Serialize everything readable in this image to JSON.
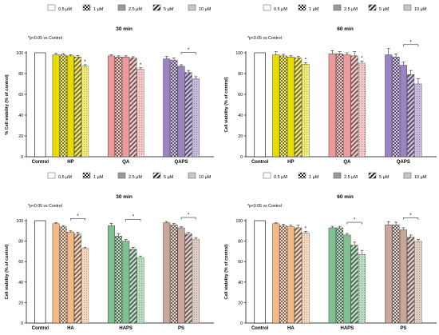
{
  "chart_data": [
    {
      "type": "bar",
      "title": "30 min",
      "ylabel": "% Cell viability (% of control)",
      "ylim": [
        0,
        100
      ],
      "yticks": [
        0,
        20,
        40,
        60,
        80,
        100
      ],
      "annotation": "*p<0.05 vs Control",
      "control": {
        "label": "Control",
        "value": 100
      },
      "legend": [
        "0.5 µM",
        "1 µM",
        "2.5 µM",
        "5 µM",
        "10 µM"
      ],
      "groups": [
        {
          "name": "HP",
          "color": "#e7dc00",
          "values": [
            98,
            98,
            97,
            96,
            87
          ],
          "errors": [
            1.5,
            1.2,
            1.0,
            1.2,
            1.5
          ],
          "sig": [
            false,
            false,
            false,
            false,
            true
          ],
          "bracket": false
        },
        {
          "name": "QA",
          "color": "#ef9a9a",
          "values": [
            97,
            96,
            96,
            95,
            84
          ],
          "errors": [
            1.2,
            1.0,
            1.0,
            1.2,
            1.5
          ],
          "sig": [
            false,
            false,
            false,
            false,
            true
          ],
          "bracket": false
        },
        {
          "name": "QAPS",
          "color": "#9b83c4",
          "values": [
            94,
            93,
            87,
            81,
            75
          ],
          "errors": [
            2.5,
            2.0,
            1.5,
            2.0,
            2.0
          ],
          "sig": [
            false,
            false,
            false,
            false,
            false
          ],
          "bracket": true
        }
      ]
    },
    {
      "type": "bar",
      "title": "60 min",
      "ylabel": "Cell viability (% of control)",
      "ylim": [
        0,
        100
      ],
      "yticks": [
        0,
        20,
        40,
        60,
        80,
        100
      ],
      "annotation": "*p<0.05 vs Control",
      "control": {
        "label": "Control",
        "value": 100
      },
      "legend": [
        "0.5 µM",
        "1 µM",
        "2.5 µM",
        "5 µM",
        "10 µM"
      ],
      "groups": [
        {
          "name": "HP",
          "color": "#e7dc00",
          "values": [
            98,
            97,
            96,
            95,
            89
          ],
          "errors": [
            3,
            1.5,
            1.2,
            1.5,
            1.5
          ],
          "sig": [
            false,
            false,
            false,
            false,
            true
          ],
          "bracket": false
        },
        {
          "name": "QA",
          "color": "#ef9a9a",
          "values": [
            99,
            99,
            98,
            97,
            90
          ],
          "errors": [
            3,
            2,
            2,
            4,
            2
          ],
          "sig": [
            false,
            false,
            false,
            false,
            true
          ],
          "bracket": false
        },
        {
          "name": "QAPS",
          "color": "#9b83c4",
          "values": [
            98,
            96,
            88,
            79,
            70
          ],
          "errors": [
            6,
            3,
            3,
            4,
            5
          ],
          "sig": [
            false,
            false,
            false,
            false,
            false
          ],
          "bracket": true
        }
      ]
    },
    {
      "type": "bar",
      "title": "30 min",
      "ylabel": "Cell viability (% of control)",
      "ylim": [
        0,
        100
      ],
      "yticks": [
        0,
        20,
        40,
        60,
        80,
        100
      ],
      "annotation": "*p<0.05 vs Control",
      "control": {
        "label": "Control",
        "value": 100
      },
      "legend": [
        "0.5 µM",
        "1 µM",
        "2.5 µM",
        "5 µM",
        "10 µM"
      ],
      "groups": [
        {
          "name": "HA",
          "color": "#f5b887",
          "values": [
            97,
            94,
            89,
            87,
            73
          ],
          "errors": [
            1.2,
            1.2,
            1.0,
            1.5,
            1.0
          ],
          "sig": [
            false,
            false,
            false,
            false,
            false
          ],
          "bracket": true
        },
        {
          "name": "HAPS",
          "color": "#7fc28f",
          "values": [
            95,
            85,
            80,
            72,
            64
          ],
          "errors": [
            2.5,
            2,
            1.5,
            2,
            1.5
          ],
          "sig": [
            false,
            false,
            false,
            false,
            false
          ],
          "bracket": true
        },
        {
          "name": "PS",
          "color": "#c9a799",
          "values": [
            98,
            96,
            93,
            87,
            82
          ],
          "errors": [
            1.2,
            1.2,
            1.0,
            1.5,
            1.5
          ],
          "sig": [
            false,
            false,
            false,
            false,
            false
          ],
          "bracket": true
        }
      ]
    },
    {
      "type": "bar",
      "title": "60 min",
      "ylabel": "Cell viability (% of control)",
      "ylim": [
        0,
        100
      ],
      "yticks": [
        0,
        20,
        40,
        60,
        80,
        100
      ],
      "annotation": "*p<0.05 vs Control",
      "control": {
        "label": "Control",
        "value": 100
      },
      "legend": [
        "0.5 µM",
        "1 µM",
        "2.5 µM",
        "5 µM",
        "10 µM"
      ],
      "groups": [
        {
          "name": "HA",
          "color": "#f5b887",
          "values": [
            97,
            95,
            94,
            93,
            88
          ],
          "errors": [
            1.0,
            1.5,
            1.5,
            2.5,
            1.5
          ],
          "sig": [
            false,
            false,
            false,
            false,
            true
          ],
          "bracket": false
        },
        {
          "name": "HAPS",
          "color": "#7fc28f",
          "values": [
            93,
            93,
            86,
            76,
            67
          ],
          "errors": [
            1.5,
            1.5,
            1.5,
            3,
            4
          ],
          "sig": [
            false,
            false,
            false,
            false,
            false
          ],
          "bracket": true
        },
        {
          "name": "PS",
          "color": "#c9a799",
          "values": [
            96,
            96,
            91,
            84,
            80
          ],
          "errors": [
            3,
            2.5,
            2,
            2,
            1.5
          ],
          "sig": [
            false,
            false,
            false,
            false,
            false
          ],
          "bracket": true
        }
      ]
    }
  ]
}
